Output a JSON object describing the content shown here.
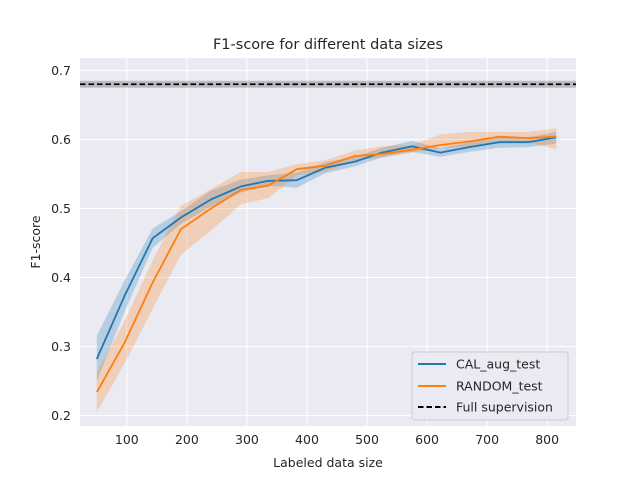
{
  "chart_data": {
    "type": "line",
    "title": "F1-score for different data sizes",
    "xlabel": "Labeled data size",
    "ylabel": "F1-score",
    "xlim": [
      22,
      848
    ],
    "ylim": [
      0.185,
      0.718
    ],
    "xticks": [
      100,
      200,
      300,
      400,
      500,
      600,
      700,
      800
    ],
    "yticks": [
      0.2,
      0.3,
      0.4,
      0.5,
      0.6,
      0.7
    ],
    "grid": true,
    "legend_position": "lower-right",
    "series": [
      {
        "name": "CAL_aug_test",
        "color": "#1f77b4",
        "x": [
          50,
          96,
          143,
          190,
          240,
          290,
          335,
          383,
          430,
          480,
          525,
          575,
          622,
          670,
          720,
          768,
          815
        ],
        "y": [
          0.282,
          0.373,
          0.457,
          0.487,
          0.513,
          0.532,
          0.54,
          0.541,
          0.559,
          0.568,
          0.581,
          0.59,
          0.581,
          0.589,
          0.596,
          0.596,
          0.603
        ],
        "lower": [
          0.25,
          0.35,
          0.443,
          0.478,
          0.503,
          0.523,
          0.533,
          0.53,
          0.551,
          0.561,
          0.574,
          0.582,
          0.575,
          0.582,
          0.588,
          0.589,
          0.594
        ],
        "upper": [
          0.316,
          0.395,
          0.471,
          0.496,
          0.526,
          0.542,
          0.548,
          0.552,
          0.567,
          0.575,
          0.588,
          0.598,
          0.587,
          0.596,
          0.604,
          0.603,
          0.611
        ]
      },
      {
        "name": "RANDOM_test",
        "color": "#ff7f0e",
        "x": [
          50,
          96,
          143,
          190,
          240,
          290,
          335,
          383,
          430,
          480,
          525,
          575,
          622,
          670,
          720,
          768,
          815
        ],
        "y": [
          0.234,
          0.305,
          0.393,
          0.47,
          0.5,
          0.527,
          0.533,
          0.557,
          0.562,
          0.576,
          0.579,
          0.585,
          0.592,
          0.597,
          0.604,
          0.602,
          0.604
        ],
        "lower": [
          0.205,
          0.275,
          0.355,
          0.433,
          0.468,
          0.506,
          0.515,
          0.548,
          0.553,
          0.569,
          0.574,
          0.581,
          0.587,
          0.59,
          0.598,
          0.596,
          0.586
        ],
        "upper": [
          0.262,
          0.337,
          0.425,
          0.504,
          0.528,
          0.553,
          0.553,
          0.564,
          0.57,
          0.584,
          0.59,
          0.592,
          0.607,
          0.611,
          0.611,
          0.611,
          0.616
        ]
      }
    ],
    "reference_line": {
      "name": "Full supervision",
      "color": "#000000",
      "y": 0.68,
      "lower": 0.675,
      "upper": 0.685
    },
    "legend": [
      "CAL_aug_test",
      "RANDOM_test",
      "Full supervision"
    ]
  }
}
